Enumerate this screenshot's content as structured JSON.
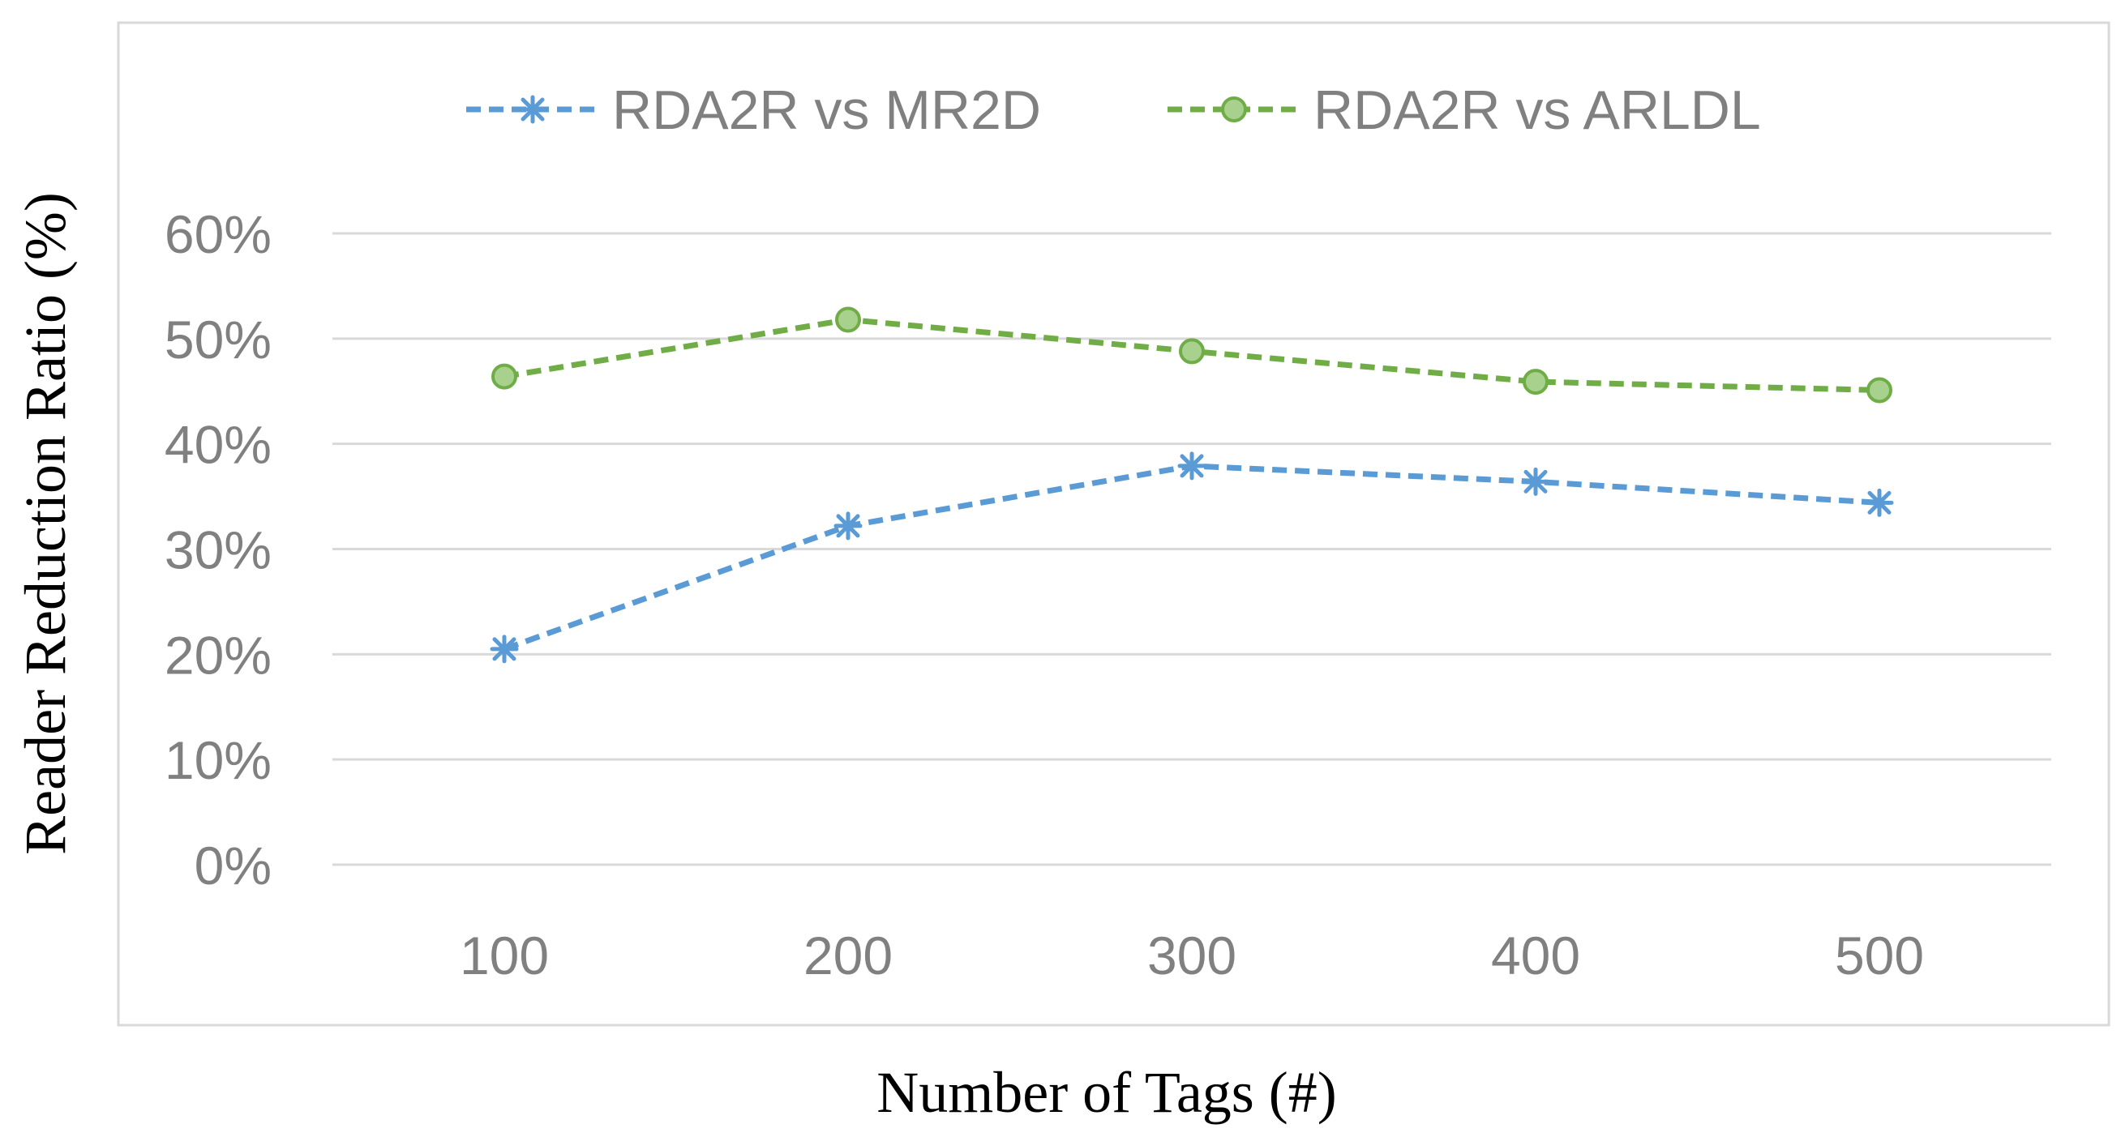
{
  "chart_data": {
    "type": "line",
    "title": "",
    "xlabel": "Number of Tags (#)",
    "ylabel": "Reader Reduction Ratio (%)",
    "categories": [
      "100",
      "200",
      "300",
      "400",
      "500"
    ],
    "ylim": [
      0,
      60
    ],
    "y_ticks": [
      0,
      10,
      20,
      30,
      40,
      50,
      60
    ],
    "y_tick_labels": [
      "0%",
      "10%",
      "20%",
      "30%",
      "40%",
      "50%",
      "60%"
    ],
    "grid": "horizontal",
    "legend_position": "top-center",
    "series": [
      {
        "name": "RDA2R vs MR2D",
        "values": [
          20.5,
          32.2,
          37.9,
          36.4,
          34.4
        ],
        "color": "#5B9BD5",
        "marker": "asterisk",
        "line_style": "dashed"
      },
      {
        "name": "RDA2R vs ARLDL",
        "values": [
          46.4,
          51.8,
          48.8,
          45.9,
          45.1
        ],
        "color": "#70AD47",
        "marker": "circle",
        "line_style": "dashed"
      }
    ]
  }
}
